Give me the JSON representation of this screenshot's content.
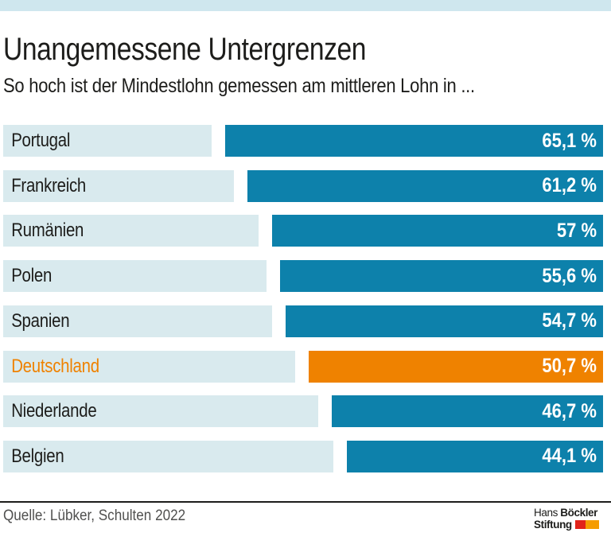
{
  "page": {
    "top_strip_color": "#cfe7ee"
  },
  "header": {
    "title": "Unangemessene Untergrenzen",
    "subtitle": "So hoch ist der Mindestlohn gemessen am mittleren Lohn in ..."
  },
  "chart_data": {
    "type": "bar",
    "orientation": "horizontal",
    "title": "Unangemessene Untergrenzen",
    "subtitle": "So hoch ist der Mindestlohn gemessen am mittleren Lohn in ...",
    "unit": "%",
    "categories": [
      "Portugal",
      "Frankreich",
      "Rumänien",
      "Polen",
      "Spanien",
      "Deutschland",
      "Niederlande",
      "Belgien"
    ],
    "values": [
      65.1,
      61.2,
      57,
      55.6,
      54.7,
      50.7,
      46.7,
      44.1
    ],
    "value_labels": [
      "65,1 %",
      "61,2 %",
      "57 %",
      "55,6 %",
      "54,7 %",
      "50,7 %",
      "46,7 %",
      "44,1 %"
    ],
    "highlight_index": 5,
    "highlight_category": "Deutschland",
    "bar_color": "#0d81ab",
    "highlight_bar_color": "#ef8200",
    "category_bg_color": "#d9eaee",
    "category_text_color": "#1d1d1b",
    "highlight_category_text_color": "#ef8200",
    "value_text_color": "#ffffff",
    "axis": "none",
    "legend": "none",
    "bars_right_aligned": true
  },
  "footer": {
    "source": "Quelle: Lübker, Schulten 2022",
    "logo": {
      "line1_regular": "Hans",
      "line1_bold": "Böckler",
      "line2_bold": "Stiftung",
      "red_color": "#e2231a",
      "orange_color": "#f59c00"
    }
  }
}
